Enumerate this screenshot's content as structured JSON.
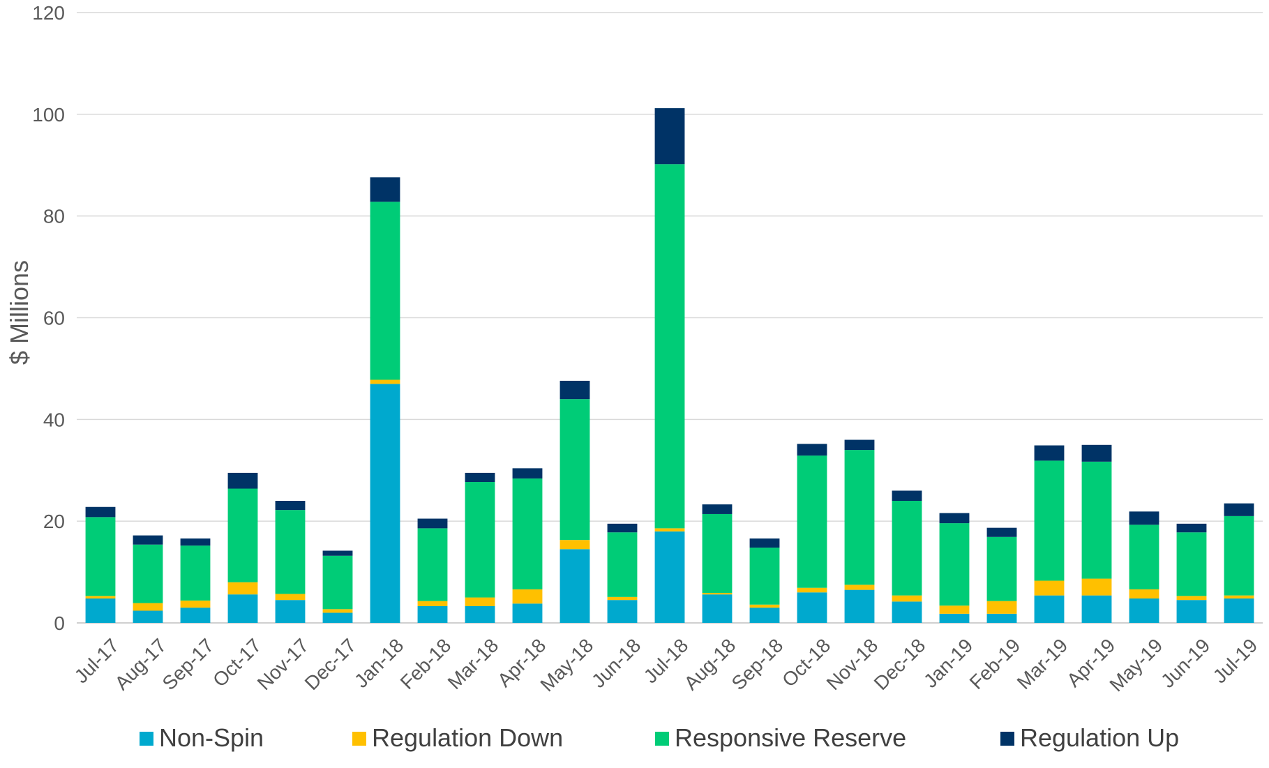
{
  "chart_data": {
    "type": "bar",
    "stacked": true,
    "ylabel": "$ Millions",
    "xlabel": "",
    "ylim": [
      0,
      120
    ],
    "yticks": [
      0,
      20,
      40,
      60,
      80,
      100,
      120
    ],
    "grid": true,
    "legend_position": "bottom",
    "categories": [
      "Jul-17",
      "Aug-17",
      "Sep-17",
      "Oct-17",
      "Nov-17",
      "Dec-17",
      "Jan-18",
      "Feb-18",
      "Mar-18",
      "Apr-18",
      "May-18",
      "Jun-18",
      "Jul-18",
      "Aug-18",
      "Sep-18",
      "Oct-18",
      "Nov-18",
      "Dec-18",
      "Jan-19",
      "Feb-19",
      "Mar-19",
      "Apr-19",
      "May-19",
      "Jun-19",
      "Jul-19"
    ],
    "series": [
      {
        "name": "Non-Spin",
        "color": "#00A9CE",
        "values": [
          4.8,
          2.4,
          3.0,
          5.6,
          4.5,
          2.0,
          47.0,
          3.3,
          3.3,
          3.8,
          14.5,
          4.5,
          18.0,
          5.6,
          3.0,
          6.0,
          6.5,
          4.2,
          1.8,
          1.8,
          5.4,
          5.4,
          4.8,
          4.5,
          4.8
        ]
      },
      {
        "name": "Regulation Down",
        "color": "#FFC000",
        "values": [
          0.5,
          1.5,
          1.4,
          2.4,
          1.2,
          0.7,
          0.8,
          1.0,
          1.7,
          2.8,
          1.8,
          0.6,
          0.6,
          0.3,
          0.6,
          0.9,
          1.0,
          1.2,
          1.6,
          2.5,
          2.9,
          3.3,
          1.8,
          0.8,
          0.6
        ]
      },
      {
        "name": "Responsive Reserve",
        "color": "#00CC77",
        "values": [
          15.5,
          11.5,
          10.8,
          18.4,
          16.5,
          10.5,
          35.0,
          14.3,
          22.7,
          21.8,
          27.7,
          12.7,
          71.6,
          15.5,
          11.2,
          26.0,
          26.5,
          18.6,
          16.2,
          12.6,
          23.6,
          23.0,
          12.7,
          12.5,
          15.6
        ]
      },
      {
        "name": "Regulation Up",
        "color": "#003366",
        "values": [
          2.0,
          1.8,
          1.4,
          3.1,
          1.8,
          1.0,
          4.8,
          1.9,
          1.8,
          2.0,
          3.6,
          1.7,
          11.0,
          1.9,
          1.8,
          2.3,
          2.0,
          2.0,
          2.0,
          1.8,
          3.0,
          3.3,
          2.6,
          1.7,
          2.5
        ]
      }
    ]
  }
}
